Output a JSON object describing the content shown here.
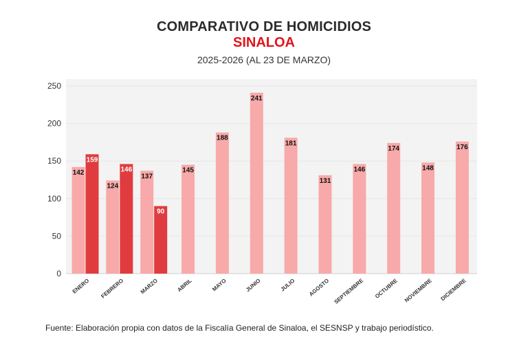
{
  "header": {
    "title": "COMPARATIVO DE HOMICIDIOS",
    "subtitle": "SINALOA",
    "period": "2025-2026 (AL 23 DE MARZO)"
  },
  "footer": {
    "source": "Fuente: Elaboración propia con datos de la Fiscalía General de Sinaloa, el SESNSP y trabajo periodístico."
  },
  "colors": {
    "series_2025": "#f8a9a9",
    "series_2026": "#e03c3f",
    "plot_background": "#f3f3f3",
    "subtitle": "#e3131b"
  },
  "chart_data": {
    "type": "bar",
    "categories": [
      "ENERO",
      "FEBRERO",
      "MARZO",
      "ABRIL",
      "MAYO",
      "JUNIO",
      "JULIO",
      "AGOSTO",
      "SEPTIEMBRE",
      "OCTUBRE",
      "NOVIEMBRE",
      "DICIEMBRE"
    ],
    "series": [
      {
        "values": [
          142,
          124,
          137,
          145,
          188,
          241,
          181,
          131,
          146,
          174,
          148,
          176
        ]
      },
      {
        "values": [
          159,
          146,
          90,
          null,
          null,
          null,
          null,
          null,
          null,
          null,
          null,
          null
        ]
      }
    ],
    "ylim": [
      0,
      250
    ],
    "yticks": [
      0,
      50,
      100,
      150,
      200,
      250
    ],
    "grid": true,
    "legend": "none"
  }
}
